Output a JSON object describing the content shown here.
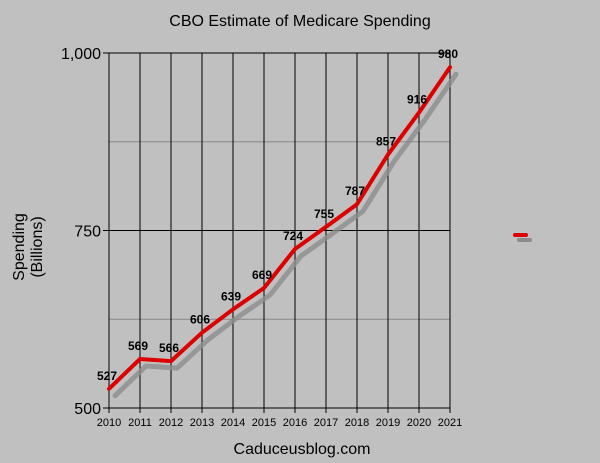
{
  "chart_data": {
    "type": "line",
    "title": "CBO Estimate of Medicare Spending",
    "xlabel": "Caduceusblog.com",
    "ylabel_line1": "Spending",
    "ylabel_line2": "(Billions)",
    "x": [
      "2010",
      "2011",
      "2012",
      "2013",
      "2014",
      "2015",
      "2016",
      "2017",
      "2018",
      "2019",
      "2020",
      "2021"
    ],
    "series": [
      {
        "values": [
          527,
          569,
          566,
          606,
          639,
          669,
          724,
          755,
          787,
          857,
          916,
          980
        ],
        "color": "#dd0000",
        "data_labels": [
          "527",
          "569",
          "566",
          "606",
          "639",
          "669",
          "724",
          "755",
          "787",
          "857",
          "916",
          "980"
        ]
      }
    ],
    "ylim": [
      500,
      1000
    ],
    "y_ticks": [
      500,
      750,
      1000
    ],
    "y_tick_labels": [
      "500",
      "750",
      "1,000"
    ],
    "y_minor_gridlines": [
      625,
      875
    ],
    "grid": true,
    "legend_position": "right",
    "colors": {
      "background": "#c0c0c0",
      "line": "#dd0000",
      "shadow": "#8c8c8c",
      "grid_major": "#000000",
      "grid_minor": "#888888"
    }
  }
}
